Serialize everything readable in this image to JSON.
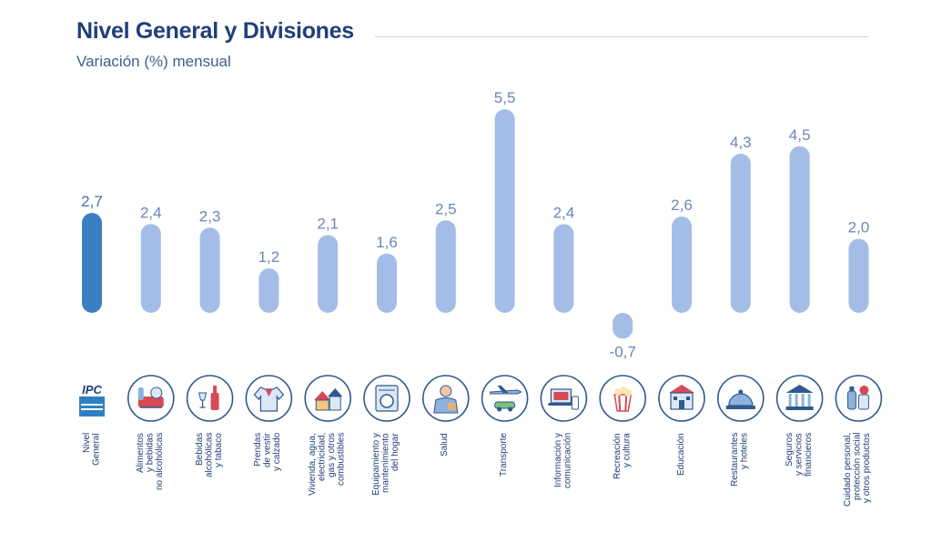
{
  "header": {
    "title": "Nivel General y Divisiones",
    "subtitle": "Variación (%) mensual"
  },
  "colors": {
    "highlight_bar": "#3a7fc1",
    "bar": "#a3bde6",
    "title": "#1f3f7a",
    "value_label": "#6c86b8"
  },
  "chart_data": {
    "type": "bar",
    "title": "Nivel General y Divisiones",
    "subtitle": "Variación (%) mensual",
    "xlabel": "",
    "ylabel": "Variación (%) mensual",
    "ylim": [
      -0.7,
      5.5
    ],
    "grid": false,
    "categories": [
      "Nivel\nGeneral",
      "Alimentos\ny bebidas\nno alcohólicas",
      "Bebidas\nalcohólicas\ny tabaco",
      "Prendas\nde vestir\ny calzado",
      "Vivienda, agua,\nelectricidad,\ngas y otros\ncombustibles",
      "Equipamiento y\nmantenimiento\ndel hogar",
      "Salud",
      "Transporte",
      "Información y\ncomunicación",
      "Recreación\ny cultura",
      "Educación",
      "Restaurantes\ny hoteles",
      "Seguros\ny servicios\nfinancieros",
      "Cuidado personal,\nprotección social\ny otros productos"
    ],
    "values": [
      2.7,
      2.4,
      2.3,
      1.2,
      2.1,
      1.6,
      2.5,
      5.5,
      2.4,
      -0.7,
      2.6,
      4.3,
      4.5,
      2.0
    ],
    "value_labels": [
      "2,7",
      "2,4",
      "2,3",
      "1,2",
      "2,1",
      "1,6",
      "2,5",
      "5,5",
      "2,4",
      "-0,7",
      "2,6",
      "4,3",
      "4,5",
      "2,0"
    ],
    "highlight_index": 0
  },
  "icons": [
    "ipc-logo-icon",
    "food-basket-icon",
    "wine-bottle-icon",
    "shirt-icon",
    "houses-icon",
    "washing-machine-icon",
    "doctor-icon",
    "plane-car-icon",
    "laptop-phone-icon",
    "popcorn-icon",
    "school-building-icon",
    "service-bell-icon",
    "bank-icon",
    "personal-care-icon"
  ],
  "ipc_logo_text": "IPC"
}
